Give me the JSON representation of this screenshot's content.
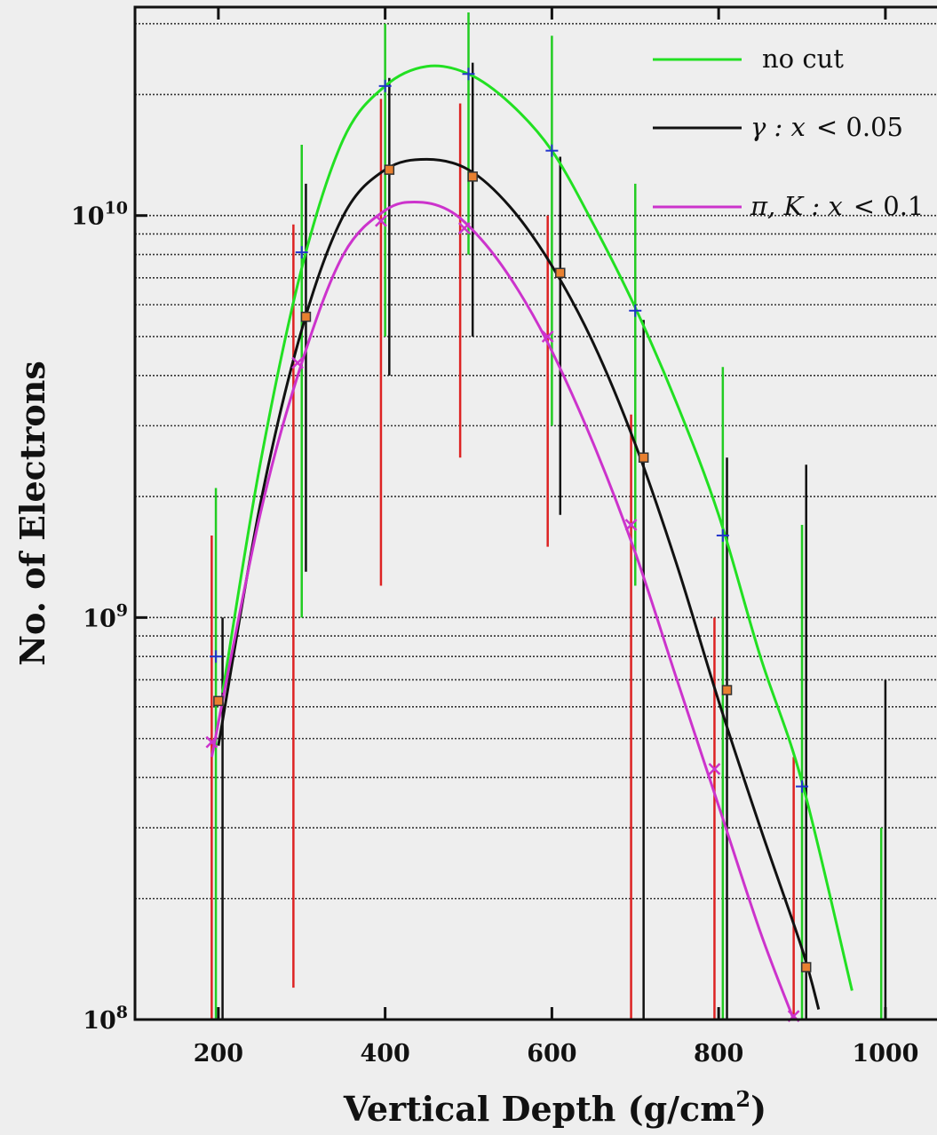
{
  "chart_data": {
    "type": "line",
    "title": "",
    "xlabel": "Vertical Depth (g/cm",
    "xlabel_sup": "2",
    "xlabel_tail": ")",
    "ylabel": "No. of Electrons",
    "xlim": [
      100,
      1080
    ],
    "ylim": [
      100000000.0,
      33000000000.0
    ],
    "yscale": "log",
    "grid": "horizontal-dotted",
    "legend_position": "top-right",
    "x_ticks": [
      200,
      400,
      600,
      800,
      1000
    ],
    "y_ticks": [
      {
        "value": 100000000.0,
        "base": "10",
        "exp": "8"
      },
      {
        "value": 1000000000.0,
        "base": "10",
        "exp": "9"
      },
      {
        "value": 10000000000.0,
        "base": "10",
        "exp": "10"
      }
    ],
    "series": [
      {
        "name": "no cut",
        "color": "#22e022",
        "marker": "plus",
        "markers_x": [
          197,
          300,
          400,
          500,
          600,
          700,
          805,
          900
        ],
        "markers_y": [
          800000000.0,
          8100000000.0,
          21000000000.0,
          22500000000.0,
          14500000000.0,
          5800000000.0,
          1600000000.0,
          380000000.0
        ],
        "curve_x": [
          205,
          250,
          300,
          350,
          400,
          450,
          500,
          550,
          600,
          650,
          700,
          750,
          800,
          850,
          900,
          960
        ],
        "curve_y": [
          650000000.0,
          2400000000.0,
          7400000000.0,
          15500000000.0,
          21000000000.0,
          23500000000.0,
          22500000000.0,
          19000000000.0,
          14500000000.0,
          9500000000.0,
          5900000000.0,
          3400000000.0,
          1800000000.0,
          800000000.0,
          390000000.0,
          118000000.0
        ]
      },
      {
        "name": "γ : x < 0.05",
        "legend_math": "γ : x",
        "legend_value": "< 0.05",
        "color": "#111111",
        "marker": "square",
        "markers_x": [
          200,
          305,
          405,
          505,
          610,
          710,
          810,
          905
        ],
        "markers_y": [
          620000000.0,
          5600000000.0,
          13000000000.0,
          12500000000.0,
          7200000000.0,
          2500000000.0,
          660000000.0,
          135000000.0
        ],
        "curve_x": [
          200,
          250,
          300,
          350,
          400,
          450,
          500,
          550,
          600,
          650,
          700,
          750,
          800,
          850,
          900,
          920
        ],
        "curve_y": [
          480000000.0,
          1900000000.0,
          5200000000.0,
          10000000000.0,
          13000000000.0,
          13800000000.0,
          13000000000.0,
          10500000000.0,
          7500000000.0,
          4800000000.0,
          2700000000.0,
          1350000000.0,
          620000000.0,
          300000000.0,
          150000000.0,
          106000000.0
        ]
      },
      {
        "name": "π, K : x < 0.1",
        "legend_math": "π, K : x",
        "legend_value": "< 0.1",
        "color": "#cc33cc",
        "marker": "cross",
        "markers_x": [
          192,
          295,
          395,
          495,
          595,
          695,
          795,
          890
        ],
        "markers_y": [
          490000000.0,
          4300000000.0,
          9700000000.0,
          9300000000.0,
          5000000000.0,
          1700000000.0,
          420000000.0,
          102000000.0
        ],
        "curve_x": [
          192,
          250,
          300,
          350,
          400,
          440,
          480,
          520,
          560,
          600,
          650,
          700,
          750,
          800,
          850,
          890
        ],
        "curve_y": [
          450000000.0,
          1800000000.0,
          4300000000.0,
          8000000000.0,
          10300000000.0,
          10800000000.0,
          10200000000.0,
          8500000000.0,
          6500000000.0,
          4600000000.0,
          2700000000.0,
          1450000000.0,
          700000000.0,
          340000000.0,
          165000000.0,
          100000000.0
        ]
      }
    ],
    "error_bars": [
      {
        "x": 192,
        "lo": 100000000.0,
        "hi": 1600000000.0,
        "color": "#dd2222"
      },
      {
        "x": 197,
        "lo": 100000000.0,
        "hi": 2100000000.0,
        "color": "#22cc22"
      },
      {
        "x": 205,
        "lo": 100000000.0,
        "hi": 1000000000.0,
        "color": "#111111"
      },
      {
        "x": 290,
        "lo": 120000000.0,
        "hi": 9500000000.0,
        "color": "#dd2222"
      },
      {
        "x": 300,
        "lo": 1000000000.0,
        "hi": 15000000000.0,
        "color": "#22cc22"
      },
      {
        "x": 305,
        "lo": 1300000000.0,
        "hi": 12000000000.0,
        "color": "#111111"
      },
      {
        "x": 395,
        "lo": 1200000000.0,
        "hi": 19500000000.0,
        "color": "#dd2222"
      },
      {
        "x": 400,
        "lo": 5000000000.0,
        "hi": 30000000000.0,
        "color": "#22cc22"
      },
      {
        "x": 405,
        "lo": 4000000000.0,
        "hi": 22000000000.0,
        "color": "#111111"
      },
      {
        "x": 490,
        "lo": 2500000000.0,
        "hi": 19000000000.0,
        "color": "#dd2222"
      },
      {
        "x": 500,
        "lo": 8000000000.0,
        "hi": 32000000000.0,
        "color": "#22cc22"
      },
      {
        "x": 505,
        "lo": 5000000000.0,
        "hi": 24000000000.0,
        "color": "#111111"
      },
      {
        "x": 595,
        "lo": 1500000000.0,
        "hi": 10000000000.0,
        "color": "#dd2222"
      },
      {
        "x": 600,
        "lo": 3000000000.0,
        "hi": 28000000000.0,
        "color": "#22cc22"
      },
      {
        "x": 610,
        "lo": 1800000000.0,
        "hi": 14000000000.0,
        "color": "#111111"
      },
      {
        "x": 695,
        "lo": 100000000.0,
        "hi": 3200000000.0,
        "color": "#dd2222"
      },
      {
        "x": 700,
        "lo": 1200000000.0,
        "hi": 12000000000.0,
        "color": "#22cc22"
      },
      {
        "x": 710,
        "lo": 100000000.0,
        "hi": 5500000000.0,
        "color": "#111111"
      },
      {
        "x": 795,
        "lo": 100000000.0,
        "hi": 1000000000.0,
        "color": "#dd2222"
      },
      {
        "x": 805,
        "lo": 100000000.0,
        "hi": 4200000000.0,
        "color": "#22cc22"
      },
      {
        "x": 810,
        "lo": 100000000.0,
        "hi": 2500000000.0,
        "color": "#111111"
      },
      {
        "x": 890,
        "lo": 100000000.0,
        "hi": 450000000.0,
        "color": "#dd2222"
      },
      {
        "x": 900,
        "lo": 100000000.0,
        "hi": 1700000000.0,
        "color": "#22cc22"
      },
      {
        "x": 905,
        "lo": 100000000.0,
        "hi": 2400000000.0,
        "color": "#111111"
      },
      {
        "x": 995,
        "lo": 100000000.0,
        "hi": 300000000.0,
        "color": "#22cc22"
      },
      {
        "x": 1000,
        "lo": 100000000.0,
        "hi": 700000000.0,
        "color": "#111111"
      }
    ]
  }
}
